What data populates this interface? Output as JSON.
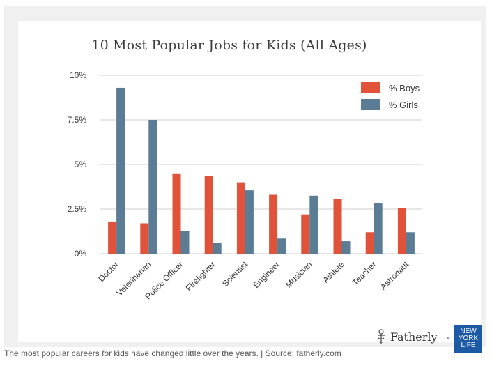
{
  "chart_data": {
    "type": "bar",
    "title": "10 Most Popular Jobs for Kids (All Ages)",
    "categories": [
      "Doctor",
      "Veterinarian",
      "Police Officer",
      "Firefighter",
      "Scientist",
      "Engineer",
      "Musician",
      "Athlete",
      "Teacher",
      "Astronaut"
    ],
    "series": [
      {
        "name": "% Boys",
        "color": "#e0523a",
        "values": [
          1.8,
          1.7,
          4.5,
          4.35,
          4.0,
          3.3,
          2.2,
          3.05,
          1.2,
          2.55
        ]
      },
      {
        "name": "% Girls",
        "color": "#5a7c95",
        "values": [
          9.3,
          7.5,
          1.25,
          0.6,
          3.55,
          0.85,
          3.25,
          0.7,
          2.85,
          1.2
        ]
      }
    ],
    "yticks": [
      "0%",
      "2.5%",
      "5%",
      "7.5%",
      "10%"
    ],
    "ytick_values": [
      0,
      2.5,
      5,
      7.5,
      10
    ],
    "ylim": [
      0,
      10
    ],
    "legend_position": "top-right",
    "grid": true
  },
  "branding": {
    "fatherly": "Fatherly",
    "times": "×",
    "nyl_lines": [
      "NEW",
      "YORK",
      "LIFE"
    ]
  },
  "caption": "The most popular careers for kids have changed little over the years. | Source: fatherly.com"
}
